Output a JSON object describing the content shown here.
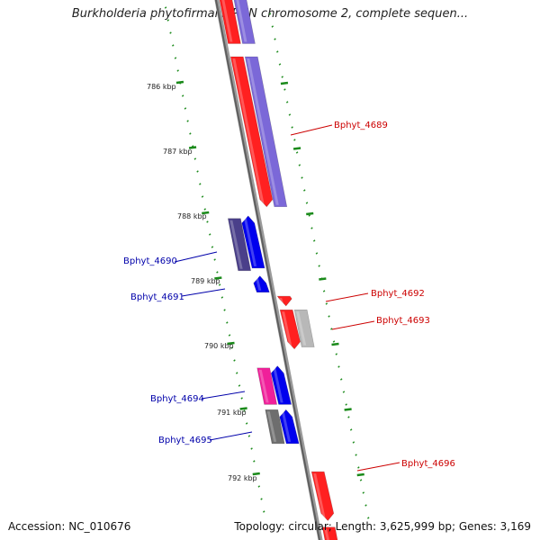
{
  "title": "Burkholderia phytofirmans PsJN chromosome 2, complete sequen...",
  "footer": {
    "accession": "Accession: NC_010676",
    "topology": "Topology: circular; Length: 3,625,999 bp; Genes: 3,169"
  },
  "colors": {
    "backbone": "#777777",
    "tick": "#1a8a1a",
    "plus_label": "#cc0000",
    "minus_label": "#0000aa",
    "label_text": "#222222"
  },
  "scale_labels": [
    "786 kbp",
    "787 kbp",
    "788 kbp",
    "789 kbp",
    "790 kbp",
    "791 kbp",
    "792 kbp"
  ],
  "gene_labels": [
    {
      "name": "Bphyt_4689",
      "strand": "plus"
    },
    {
      "name": "Bphyt_4690",
      "strand": "minus"
    },
    {
      "name": "Bphyt_4691",
      "strand": "minus"
    },
    {
      "name": "Bphyt_4692",
      "strand": "plus"
    },
    {
      "name": "Bphyt_4693",
      "strand": "plus"
    },
    {
      "name": "Bphyt_4694",
      "strand": "minus"
    },
    {
      "name": "Bphyt_4695",
      "strand": "minus"
    },
    {
      "name": "Bphyt_4696",
      "strand": "plus"
    }
  ],
  "genes": [
    {
      "strand": "plus",
      "lane": 1,
      "start": 764.2,
      "end": 785.4,
      "color": "#ff2020",
      "arrow": false
    },
    {
      "strand": "plus",
      "lane": 2,
      "start": 764.2,
      "end": 785.4,
      "color": "#7b68d8",
      "arrow": false
    },
    {
      "strand": "plus",
      "lane": 1,
      "start": 785.6,
      "end": 787.9,
      "color": "#ff2020",
      "arrow": true
    },
    {
      "strand": "plus",
      "lane": 2,
      "start": 785.6,
      "end": 787.9,
      "color": "#7b68d8",
      "arrow": false
    },
    {
      "strand": "minus",
      "lane": 2,
      "start": 788.08,
      "end": 788.88,
      "color": "#4a3f8a",
      "arrow": false
    },
    {
      "strand": "minus",
      "lane": 1,
      "start": 788.04,
      "end": 788.84,
      "color": "#0000ee",
      "arrow": true
    },
    {
      "strand": "minus",
      "lane": 1,
      "start": 788.96,
      "end": 789.21,
      "color": "#0000ee",
      "arrow": true
    },
    {
      "strand": "plus",
      "lane": 1,
      "start": 789.27,
      "end": 789.42,
      "color": "#ff2020",
      "arrow": true
    },
    {
      "strand": "plus",
      "lane": 1,
      "start": 789.48,
      "end": 790.08,
      "color": "#ff2020",
      "arrow": true
    },
    {
      "strand": "plus",
      "lane": 2,
      "start": 789.48,
      "end": 790.05,
      "color": "#b8b8b8",
      "arrow": false
    },
    {
      "strand": "minus",
      "lane": 2,
      "start": 790.37,
      "end": 790.93,
      "color": "#f0209a",
      "arrow": false
    },
    {
      "strand": "minus",
      "lane": 1,
      "start": 790.34,
      "end": 790.93,
      "color": "#0000ee",
      "arrow": true
    },
    {
      "strand": "minus",
      "lane": 2,
      "start": 791.01,
      "end": 791.53,
      "color": "#6e6e6e",
      "arrow": false
    },
    {
      "strand": "minus",
      "lane": 1,
      "start": 791.01,
      "end": 791.53,
      "color": "#0000ee",
      "arrow": true
    },
    {
      "strand": "plus",
      "lane": 1,
      "start": 791.96,
      "end": 792.71,
      "color": "#ff2020",
      "arrow": true
    },
    {
      "strand": "plus",
      "lane": 1,
      "start": 792.81,
      "end": 793.2,
      "color": "#ff2020",
      "arrow": false
    }
  ]
}
